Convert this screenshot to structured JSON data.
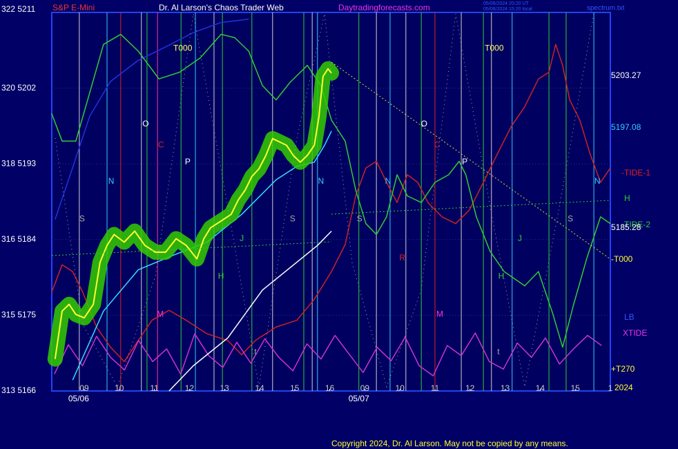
{
  "header": {
    "symbol": "S&P E-Mini",
    "site": "Dr. Al Larson's Chaos Trader Web",
    "url": "Daytradingforecasts.com",
    "stamp_1": "05/06/2024 20:20 UT",
    "stamp_2": "05/06/2024 15:20 local",
    "file": "spectrum.txt"
  },
  "footer": "Copyright 2024, Dr. Al Larson. May not be copied by any means.",
  "right_labels": {
    "a": "5203.27",
    "b": "5197.08",
    "c": "H",
    "d": "5185.28",
    "e": "-T000",
    "f": "LB",
    "g": "+T270",
    "h": "2024"
  },
  "chart_data": {
    "type": "line",
    "xlim": [
      -0.925,
      15
    ],
    "ylim": [
      5166,
      5211
    ],
    "yticks": [
      {
        "value": 5211,
        "label": "322  5211"
      },
      {
        "value": 5202,
        "label": "320  5202"
      },
      {
        "value": 5193,
        "label": "318  5193"
      },
      {
        "value": 5184,
        "label": "316  5184"
      },
      {
        "value": 5175,
        "label": "315  5175"
      },
      {
        "value": 5166,
        "label": "313  5166"
      }
    ],
    "xticks": [
      {
        "value": 0,
        "label": "09"
      },
      {
        "value": 1,
        "label": "10"
      },
      {
        "value": 2,
        "label": "11"
      },
      {
        "value": 3,
        "label": "12"
      },
      {
        "value": 4,
        "label": "13"
      },
      {
        "value": 5,
        "label": "14"
      },
      {
        "value": 6,
        "label": "15"
      },
      {
        "value": 7,
        "label": "16"
      },
      {
        "value": 8,
        "label": "09"
      },
      {
        "value": 9,
        "label": "10"
      },
      {
        "value": 10,
        "label": "11"
      },
      {
        "value": 11,
        "label": "12"
      },
      {
        "value": 12,
        "label": "13"
      },
      {
        "value": 13,
        "label": "14"
      },
      {
        "value": 14,
        "label": "15"
      },
      {
        "value": 15,
        "label": "1"
      }
    ],
    "dates": [
      {
        "value": -0.16,
        "label": "05/06"
      },
      {
        "value": 7.83,
        "label": "05/07"
      }
    ],
    "grid": true,
    "cycle_lines": [
      {
        "x": -0.14,
        "color": "#d0d0d0"
      },
      {
        "x": 0.65,
        "color": "#33ccff"
      },
      {
        "x": 1.04,
        "color": "#dd2222"
      },
      {
        "x": 1.63,
        "color": "#d0d0d0"
      },
      {
        "x": 1.79,
        "color": "#33cc33"
      },
      {
        "x": 2.09,
        "color": "#ff3399"
      },
      {
        "x": 2.76,
        "color": "#33cc33"
      },
      {
        "x": 3.17,
        "color": "#33ccff"
      },
      {
        "x": 3.7,
        "color": "#d0d0d0"
      },
      {
        "x": 3.94,
        "color": "#33cc33"
      },
      {
        "x": 4.78,
        "color": "#33cc33"
      },
      {
        "x": 5.37,
        "color": "#d0d0d0"
      },
      {
        "x": 6.26,
        "color": "#33cc33"
      },
      {
        "x": 6.5,
        "color": "#d0d0d0"
      },
      {
        "x": 6.65,
        "color": "#33ccff"
      },
      {
        "x": 7.83,
        "color": "#33cc33"
      },
      {
        "x": 8.33,
        "color": "#d0d0d0"
      },
      {
        "x": 8.72,
        "color": "#33ccff"
      },
      {
        "x": 9.17,
        "color": "#d0d0d0"
      },
      {
        "x": 9.61,
        "color": "#33cc33"
      },
      {
        "x": 10.0,
        "color": "#dd2222"
      },
      {
        "x": 10.75,
        "color": "#d0d0d0"
      },
      {
        "x": 11.38,
        "color": "#33cc33"
      },
      {
        "x": 11.61,
        "color": "#d0d0d0"
      },
      {
        "x": 12.2,
        "color": "#33ccff"
      },
      {
        "x": 13.25,
        "color": "#33cc33"
      },
      {
        "x": 13.74,
        "color": "#33cc33"
      },
      {
        "x": 14.53,
        "color": "#33ccff"
      }
    ],
    "annotations": [
      {
        "text": "T000",
        "x": 2.81,
        "y": 5206.7,
        "color": "#ffff66"
      },
      {
        "text": "T000",
        "x": 11.69,
        "y": 5206.7,
        "color": "#ffff66"
      },
      {
        "text": "O",
        "x": 1.75,
        "y": 5197.7,
        "color": "#ffffff"
      },
      {
        "text": "O",
        "x": 9.69,
        "y": 5197.7,
        "color": "#ffffff"
      },
      {
        "text": "C",
        "x": 2.19,
        "y": 5195.2,
        "color": "#dd2222"
      },
      {
        "text": "C",
        "x": 10.06,
        "y": 5195.2,
        "color": "#dd2222"
      },
      {
        "text": "P",
        "x": 2.95,
        "y": 5193.2,
        "color": "#ffffff"
      },
      {
        "text": "P",
        "x": 10.85,
        "y": 5193.2,
        "color": "#ffffff"
      },
      {
        "text": "N",
        "x": 0.77,
        "y": 5190.9,
        "color": "#33ccff"
      },
      {
        "text": "N",
        "x": 6.75,
        "y": 5190.9,
        "color": "#33ccff"
      },
      {
        "text": "N",
        "x": 8.66,
        "y": 5190.9,
        "color": "#33ccff"
      },
      {
        "text": "N",
        "x": 14.63,
        "y": 5190.9,
        "color": "#33ccff"
      },
      {
        "text": "S",
        "x": -0.06,
        "y": 5186.4,
        "color": "#aaaaaa"
      },
      {
        "text": "S",
        "x": 5.94,
        "y": 5186.4,
        "color": "#aaaaaa"
      },
      {
        "text": "S",
        "x": 7.85,
        "y": 5186.4,
        "color": "#aaaaaa"
      },
      {
        "text": "S",
        "x": 13.86,
        "y": 5186.4,
        "color": "#aaaaaa"
      },
      {
        "text": "M",
        "x": 2.17,
        "y": 5175.1,
        "color": "#ff33cc"
      },
      {
        "text": "M",
        "x": 10.14,
        "y": 5175.1,
        "color": "#ff33cc"
      },
      {
        "text": "R",
        "x": 9.07,
        "y": 5181.8,
        "color": "#dd2222"
      },
      {
        "text": "H",
        "x": 3.9,
        "y": 5179.6,
        "color": "#33cc33"
      },
      {
        "text": "H",
        "x": 11.89,
        "y": 5179.6,
        "color": "#33cc33"
      },
      {
        "text": "J",
        "x": 4.49,
        "y": 5184.1,
        "color": "#33cc33"
      },
      {
        "text": "J",
        "x": 12.42,
        "y": 5184.1,
        "color": "#33cc33"
      },
      {
        "text": "t",
        "x": 4.88,
        "y": 5170.6,
        "color": "#aaaaaa"
      },
      {
        "text": "t",
        "x": 11.81,
        "y": 5170.6,
        "color": "#aaaaaa"
      }
    ],
    "series": [
      {
        "color": "#2233dd",
        "x": [
          -0.83,
          -0.43,
          0.16,
          0.75,
          1.54,
          2.32,
          3.11,
          3.9,
          4.69
        ],
        "values": [
          5186.4,
          5191.3,
          5198.7,
          5202.8,
          5205.3,
          5206.9,
          5208.6,
          5209.8,
          5210.2
        ]
      },
      {
        "name": "-TIDE-1",
        "color": "#cc2222",
        "x": [
          -0.93,
          -0.63,
          -0.33,
          -0.04,
          0.35,
          0.75,
          1.14,
          1.54,
          1.93,
          2.42,
          2.91,
          3.5,
          4.09,
          4.49,
          4.88,
          5.47,
          6.06,
          6.56,
          7.05,
          7.44,
          7.74,
          8.03,
          8.33,
          8.62,
          8.92,
          9.21,
          9.51,
          9.8,
          10.2,
          10.59,
          10.98,
          11.38,
          11.77,
          12.17,
          12.56,
          12.95,
          13.25,
          13.44,
          13.64,
          13.84,
          14.13,
          14.43,
          14.72,
          15.0
        ],
        "values": [
          5177.7,
          5181.0,
          5180.2,
          5177.7,
          5173.6,
          5171.2,
          5169.5,
          5172.0,
          5174.4,
          5175.6,
          5174.4,
          5172.8,
          5172.0,
          5170.3,
          5172.0,
          5173.6,
          5174.4,
          5176.9,
          5180.2,
          5183.4,
          5189.2,
          5192.5,
          5193.3,
          5190.8,
          5188.4,
          5191.7,
          5190.8,
          5188.4,
          5186.7,
          5185.9,
          5187.5,
          5190.8,
          5194.1,
          5197.4,
          5199.8,
          5203.1,
          5203.9,
          5207.2,
          5204.7,
          5200.6,
          5198.2,
          5194.1,
          5190.8,
          5192.5
        ]
      },
      {
        "name": "-TIDE-2",
        "color": "#33cc33",
        "x": [
          -0.93,
          -0.63,
          -0.24,
          0.16,
          0.55,
          1.04,
          1.54,
          2.13,
          2.72,
          3.31,
          3.9,
          4.29,
          4.69,
          5.08,
          5.47,
          5.87,
          6.36,
          6.75,
          7.05,
          7.44,
          7.74,
          8.03,
          8.33,
          8.62,
          8.92,
          9.21,
          9.61,
          10.0,
          10.39,
          10.69,
          10.88,
          11.18,
          11.57,
          11.97,
          12.56,
          12.95,
          13.35,
          13.64,
          13.94,
          14.33,
          14.72,
          15.0
        ],
        "values": [
          5199.0,
          5195.7,
          5195.7,
          5201.5,
          5207.2,
          5208.4,
          5206.4,
          5203.1,
          5203.9,
          5205.6,
          5208.4,
          5208.0,
          5206.4,
          5202.3,
          5200.6,
          5202.7,
          5204.7,
          5202.3,
          5198.2,
          5195.7,
          5189.9,
          5185.9,
          5184.6,
          5186.7,
          5191.7,
          5189.2,
          5188.4,
          5190.8,
          5191.7,
          5193.3,
          5191.7,
          5186.7,
          5182.6,
          5180.2,
          5178.5,
          5180.2,
          5175.3,
          5171.2,
          5176.1,
          5181.8,
          5186.7,
          5185.9
        ]
      },
      {
        "name": "XTIDE",
        "color": "#cc33cc",
        "x": [
          -0.85,
          -0.45,
          -0.05,
          0.35,
          0.75,
          1.15,
          1.55,
          1.95,
          2.35,
          2.75,
          3.15,
          3.55,
          3.95,
          4.35,
          4.75,
          5.15,
          5.55,
          5.95,
          6.35,
          6.75,
          7.15,
          7.55,
          7.95,
          8.35,
          8.75,
          9.15,
          9.55,
          9.95,
          10.35,
          10.75,
          11.15,
          11.55,
          11.95,
          12.35,
          12.75,
          13.15,
          13.55,
          13.95,
          14.35,
          14.75
        ],
        "values": [
          5168,
          5171.5,
          5169,
          5172.5,
          5170,
          5168.5,
          5172,
          5169.5,
          5171,
          5168,
          5172.8,
          5170.2,
          5168.8,
          5171.8,
          5169.3,
          5172.2,
          5170,
          5168.4,
          5171.6,
          5169.8,
          5172.6,
          5170.4,
          5168.2,
          5171.2,
          5169.6,
          5172.4,
          5169,
          5167.8,
          5171.4,
          5170.2,
          5172.9,
          5169.5,
          5168.6,
          5171.7,
          5170,
          5172.3,
          5169.2,
          5171,
          5172.6,
          5171.4
        ]
      },
      {
        "color": "#ffffff",
        "x": [
          2.42,
          3.11,
          4.09,
          5.08,
          6.06,
          6.65,
          7.05
        ],
        "values": [
          5166.0,
          5169.0,
          5172.3,
          5178.0,
          5181.3,
          5183.3,
          5185.0
        ]
      },
      {
        "color": "#33ddff",
        "x": [
          -0.33,
          0.55,
          1.54,
          2.52,
          3.5,
          4.49,
          5.47,
          6.06,
          6.56,
          6.85,
          7.05
        ],
        "values": [
          5167.3,
          5175.5,
          5180.4,
          5182.1,
          5183.7,
          5187.0,
          5191.1,
          5192.7,
          5193.2,
          5195.2,
          5196.9
        ]
      },
      {
        "color": "#ffff33",
        "glow": "#33cc00",
        "x": [
          -0.83,
          -0.63,
          -0.43,
          -0.24,
          0,
          0.26,
          0.45,
          0.65,
          0.85,
          1.14,
          1.44,
          1.73,
          2.03,
          2.32,
          2.62,
          2.91,
          3.21,
          3.41,
          3.6,
          3.9,
          4.19,
          4.39,
          4.59,
          4.78,
          4.98,
          5.18,
          5.37,
          5.57,
          5.77,
          5.96,
          6.16,
          6.36,
          6.56,
          6.69,
          6.81,
          6.95,
          7.05
        ],
        "values": [
          5169.8,
          5175.5,
          5176.3,
          5175.1,
          5174.7,
          5176.3,
          5181.3,
          5183.3,
          5184.6,
          5183.7,
          5185.0,
          5183.3,
          5182.5,
          5182.5,
          5184.1,
          5183.3,
          5181.7,
          5184.1,
          5185.4,
          5186.2,
          5187.0,
          5188.7,
          5189.9,
          5191.5,
          5192.4,
          5194.0,
          5196.0,
          5195.6,
          5195.2,
          5194.0,
          5193.2,
          5194.0,
          5195.2,
          5198.5,
          5203.4,
          5204.3,
          5203.8
        ]
      }
    ]
  }
}
